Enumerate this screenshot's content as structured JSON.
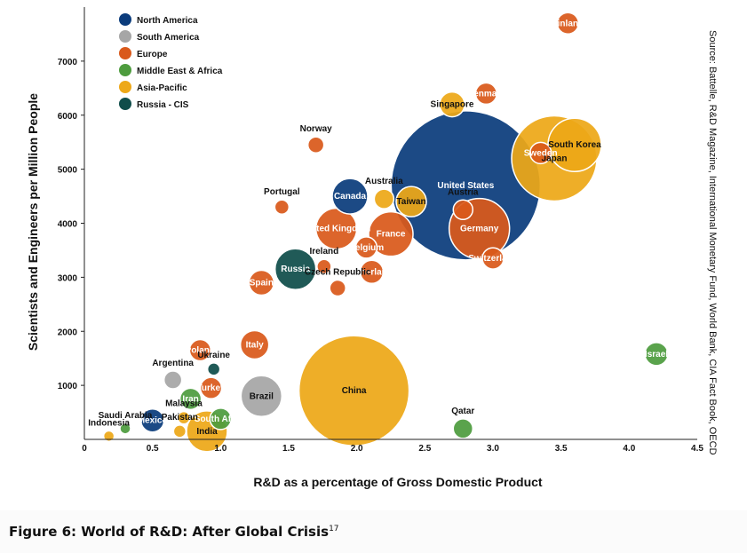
{
  "chart_data": {
    "type": "scatter",
    "subtype": "bubble",
    "xlabel": "R&D as a percentage of Gross Domestic Product",
    "ylabel": "Scientists and Engineers per Million People",
    "xlim": [
      0,
      4.5
    ],
    "ylim": [
      0,
      8000
    ],
    "x_ticks": [
      "0",
      "0.5",
      "1.0",
      "1.5",
      "2.0",
      "2.5",
      "3.0",
      "3.5",
      "4.0",
      "4.5"
    ],
    "x_tick_values": [
      0,
      0.5,
      1.0,
      1.5,
      2.0,
      2.5,
      3.0,
      3.5,
      4.0,
      4.5
    ],
    "y_ticks": [
      "1000",
      "2000",
      "3000",
      "4000",
      "5000",
      "6000",
      "7000"
    ],
    "y_tick_values": [
      1000,
      2000,
      3000,
      4000,
      5000,
      6000,
      7000
    ],
    "grid": false,
    "legend_position": "top-left",
    "regions": [
      {
        "name": "North America",
        "color": "#0b3c7c"
      },
      {
        "name": "South America",
        "color": "#a6a6a6"
      },
      {
        "name": "Europe",
        "color": "#d9591b"
      },
      {
        "name": "Middle East & Africa",
        "color": "#4e9c3e"
      },
      {
        "name": "Asia-Pacific",
        "color": "#eda818"
      },
      {
        "name": "Russia - CIS",
        "color": "#0f4d4a"
      }
    ],
    "points": [
      {
        "label": "United States",
        "region": "North America",
        "x": 2.8,
        "y": 4700,
        "size": 84
      },
      {
        "label": "China",
        "region": "Asia-Pacific",
        "x": 1.98,
        "y": 900,
        "size": 62
      },
      {
        "label": "Japan",
        "region": "Asia-Pacific",
        "x": 3.45,
        "y": 5200,
        "size": 48
      },
      {
        "label": "Germany",
        "region": "Europe",
        "x": 2.9,
        "y": 3900,
        "size": 34
      },
      {
        "label": "South Korea",
        "region": "Asia-Pacific",
        "x": 3.6,
        "y": 5450,
        "size": 30
      },
      {
        "label": "France",
        "region": "Europe",
        "x": 2.25,
        "y": 3800,
        "size": 25
      },
      {
        "label": "United Kingdom",
        "region": "Europe",
        "x": 1.85,
        "y": 3900,
        "size": 23
      },
      {
        "label": "India",
        "region": "Asia-Pacific",
        "x": 0.9,
        "y": 150,
        "size": 23
      },
      {
        "label": "Brazil",
        "region": "South America",
        "x": 1.3,
        "y": 800,
        "size": 23
      },
      {
        "label": "Russia",
        "region": "Russia - CIS",
        "x": 1.55,
        "y": 3150,
        "size": 23
      },
      {
        "label": "Canada",
        "region": "North America",
        "x": 1.95,
        "y": 4500,
        "size": 20
      },
      {
        "label": "Taiwan",
        "region": "Asia-Pacific",
        "x": 2.4,
        "y": 4400,
        "size": 17
      },
      {
        "label": "Italy",
        "region": "Europe",
        "x": 1.25,
        "y": 1750,
        "size": 16
      },
      {
        "label": "Spain",
        "region": "Europe",
        "x": 1.3,
        "y": 2900,
        "size": 14
      },
      {
        "label": "Netherlands",
        "region": "Europe",
        "x": 2.11,
        "y": 3100,
        "size": 13
      },
      {
        "label": "Belgium",
        "region": "Europe",
        "x": 2.07,
        "y": 3550,
        "size": 12
      },
      {
        "label": "Sweden",
        "region": "Europe",
        "x": 3.35,
        "y": 5300,
        "size": 12
      },
      {
        "label": "Poland",
        "region": "Europe",
        "x": 0.85,
        "y": 1650,
        "size": 12
      },
      {
        "label": "Denmark",
        "region": "Europe",
        "x": 2.95,
        "y": 6400,
        "size": 12
      },
      {
        "label": "Singapore",
        "region": "Asia-Pacific",
        "x": 2.7,
        "y": 6200,
        "size": 14
      },
      {
        "label": "Finland",
        "region": "Europe",
        "x": 3.55,
        "y": 7700,
        "size": 12
      },
      {
        "label": "Austria",
        "region": "Europe",
        "x": 2.78,
        "y": 4250,
        "size": 11
      },
      {
        "label": "Switzerland",
        "region": "Europe",
        "x": 3.0,
        "y": 3350,
        "size": 12
      },
      {
        "label": "Iran",
        "region": "Middle East & Africa",
        "x": 0.78,
        "y": 750,
        "size": 12
      },
      {
        "label": "Turkey",
        "region": "Europe",
        "x": 0.93,
        "y": 950,
        "size": 12
      },
      {
        "label": "South Africa",
        "region": "Middle East & Africa",
        "x": 1.0,
        "y": 380,
        "size": 12
      },
      {
        "label": "Mexico",
        "region": "North America",
        "x": 0.5,
        "y": 350,
        "size": 13
      },
      {
        "label": "Argentina",
        "region": "South America",
        "x": 0.65,
        "y": 1100,
        "size": 10
      },
      {
        "label": "Israel",
        "region": "Middle East & Africa",
        "x": 4.2,
        "y": 1580,
        "size": 13
      },
      {
        "label": "Qatar",
        "region": "Middle East & Africa",
        "x": 2.78,
        "y": 200,
        "size": 11
      },
      {
        "label": "Australia",
        "region": "Asia-Pacific",
        "x": 2.2,
        "y": 4450,
        "size": 11
      },
      {
        "label": "Norway",
        "region": "Europe",
        "x": 1.7,
        "y": 5450,
        "size": 9
      },
      {
        "label": "Portugal",
        "region": "Europe",
        "x": 1.45,
        "y": 4300,
        "size": 8
      },
      {
        "label": "Ireland",
        "region": "Europe",
        "x": 1.76,
        "y": 3200,
        "size": 8
      },
      {
        "label": "Czech Republic",
        "region": "Europe",
        "x": 1.86,
        "y": 2800,
        "size": 9
      },
      {
        "label": "Ukraine",
        "region": "Russia - CIS",
        "x": 0.95,
        "y": 1300,
        "size": 7
      },
      {
        "label": "Malaysia",
        "region": "Asia-Pacific",
        "x": 0.73,
        "y": 400,
        "size": 7
      },
      {
        "label": "Pakistan",
        "region": "Asia-Pacific",
        "x": 0.7,
        "y": 150,
        "size": 7
      },
      {
        "label": "Saudi Arabia",
        "region": "Middle East & Africa",
        "x": 0.3,
        "y": 200,
        "size": 6
      },
      {
        "label": "Indonesia",
        "region": "Asia-Pacific",
        "x": 0.18,
        "y": 60,
        "size": 6
      }
    ]
  },
  "caption": {
    "text": "Figure 6: World of R&D: After Global Crisis",
    "note": "17"
  },
  "source": "Source: Battelle, R&D Magazine, International Monetary Fund, World Bank, CIA Fact Book, OECD"
}
